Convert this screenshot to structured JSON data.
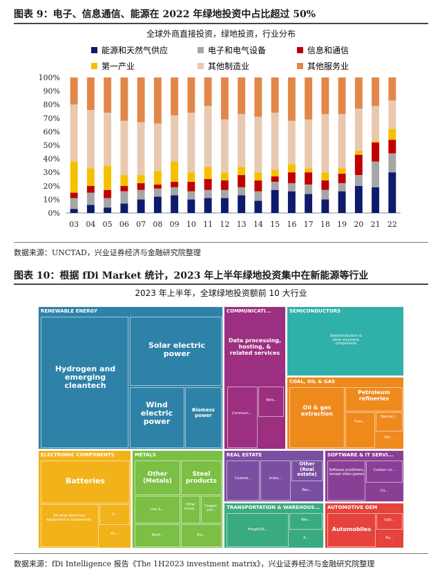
{
  "figure9": {
    "title": "图表 9：电子、信息通信、能源在 2022 年绿地投资中占比超过 50%",
    "subtitle": "全球外商直接投资，绿地投资，行业分布",
    "source": "数据来源：UNCTAD，兴业证券经济与金融研究院整理"
  },
  "chart_data": [
    {
      "type": "bar",
      "stacked": true,
      "title": "全球外商直接投资，绿地投资，行业分布",
      "categories": [
        "03",
        "04",
        "05",
        "06",
        "07",
        "08",
        "09",
        "10",
        "11",
        "12",
        "13",
        "14",
        "15",
        "16",
        "17",
        "18",
        "19",
        "20",
        "21",
        "22"
      ],
      "ylim": [
        0,
        100
      ],
      "yticks": [
        "0%",
        "10%",
        "20%",
        "30%",
        "40%",
        "50%",
        "60%",
        "70%",
        "80%",
        "90%",
        "100%"
      ],
      "colors": [
        "#0d1a6e",
        "#a6a6a6",
        "#c00000",
        "#f5c000",
        "#e8c9b0",
        "#e2874a"
      ],
      "series": [
        {
          "name": "能源和天然气供应",
          "values": [
            3,
            6,
            4,
            7,
            10,
            12,
            13,
            10,
            11,
            11,
            13,
            9,
            17,
            16,
            14,
            10,
            16,
            20,
            19,
            30
          ]
        },
        {
          "name": "电子和电气设备",
          "values": [
            8,
            9,
            7,
            9,
            7,
            6,
            6,
            6,
            6,
            6,
            6,
            7,
            6,
            6,
            7,
            7,
            6,
            8,
            19,
            14
          ]
        },
        {
          "name": "信息和通信",
          "values": [
            4,
            5,
            6,
            4,
            5,
            3,
            4,
            7,
            8,
            7,
            9,
            8,
            4,
            8,
            9,
            7,
            7,
            15,
            14,
            10
          ]
        },
        {
          "name": "第一产业",
          "values": [
            23,
            13,
            18,
            8,
            6,
            10,
            15,
            7,
            9,
            6,
            6,
            6,
            5,
            6,
            3,
            6,
            4,
            3,
            1,
            8
          ]
        },
        {
          "name": "其他制造业",
          "values": [
            42,
            43,
            39,
            40,
            39,
            35,
            34,
            44,
            45,
            39,
            39,
            41,
            42,
            32,
            36,
            43,
            40,
            31,
            26,
            21
          ]
        },
        {
          "name": "其他服务业",
          "values": [
            20,
            24,
            26,
            32,
            33,
            34,
            28,
            26,
            21,
            31,
            27,
            29,
            26,
            32,
            31,
            27,
            27,
            23,
            21,
            17
          ]
        }
      ]
    },
    {
      "type": "treemap",
      "title": "2023 年上半年，全球绿地投资额前 10 大行业",
      "groups": [
        {
          "name": "RENEWABLE ENERGY",
          "color": "#2e82a8",
          "items": [
            "Hydrogen and emerging cleantech",
            "Solar electric power",
            "Wind electric power",
            "Biomass power"
          ]
        },
        {
          "name": "COMMUNICATI...",
          "color": "#9c2f7f",
          "items": [
            "Data processing, hosting, & related services",
            "Wire...",
            "Communi..."
          ]
        },
        {
          "name": "SEMICONDUCTORS",
          "color": "#2fb0a8",
          "items": [
            "Semiconductors & other electronic components"
          ]
        },
        {
          "name": "COAL, OIL & GAS",
          "color": "#ee8a1c",
          "items": [
            "Petroleum refineries",
            "Oil & gas extraction",
            "Foss...",
            "Natural...",
            "Oth..."
          ]
        },
        {
          "name": "ELECTRONIC COMPONENTS",
          "color": "#f2b21a",
          "items": [
            "Batteries",
            "All other electrical equipment & components",
            "O...",
            "Ac..."
          ]
        },
        {
          "name": "METALS",
          "color": "#7bbf45",
          "items": [
            "Other (Metals)",
            "Steel products",
            "Iron &...",
            "Other metal...",
            "Copper, nick...",
            "Nonf...",
            "Alu..."
          ]
        },
        {
          "name": "REAL ESTATE",
          "color": "#7a4fa2",
          "items": [
            "Other (Real estate)",
            "Comme...",
            "Indus...",
            "Res..."
          ]
        },
        {
          "name": "SOFTWARE & IT SERVI...",
          "color": "#8a3f96",
          "items": [
            "Software publishers, except video games",
            "Custom co...",
            "Co..."
          ]
        },
        {
          "name": "TRANSPORTATION & WAREHOUS...",
          "color": "#3aaa80",
          "items": [
            "War...",
            "Freight/Di...",
            "A..."
          ]
        },
        {
          "name": "AUTOMOTIVE OEM",
          "color": "#e5433b",
          "items": [
            "Automobiles",
            "Ligh...",
            "Au..."
          ]
        }
      ]
    }
  ],
  "legend": [
    {
      "label": "能源和天然气供应",
      "color": "#0d1a6e"
    },
    {
      "label": "电子和电气设备",
      "color": "#a6a6a6"
    },
    {
      "label": "信息和通信",
      "color": "#c00000"
    },
    {
      "label": "第一产业",
      "color": "#f5c000"
    },
    {
      "label": "其他制造业",
      "color": "#e8c9b0"
    },
    {
      "label": "其他服务业",
      "color": "#e2874a"
    }
  ],
  "figure10": {
    "title": "图表 10：根据 fDi Market 统计，2023 年上半年绿地投资集中在新能源等行业",
    "subtitle": "2023 年上半年，全球绿地投资额前 10 大行业",
    "source": "数据来源：fDi Intelligence 报告《The 1H2023 investment matrix》，兴业证券经济与金融研究院整理"
  }
}
